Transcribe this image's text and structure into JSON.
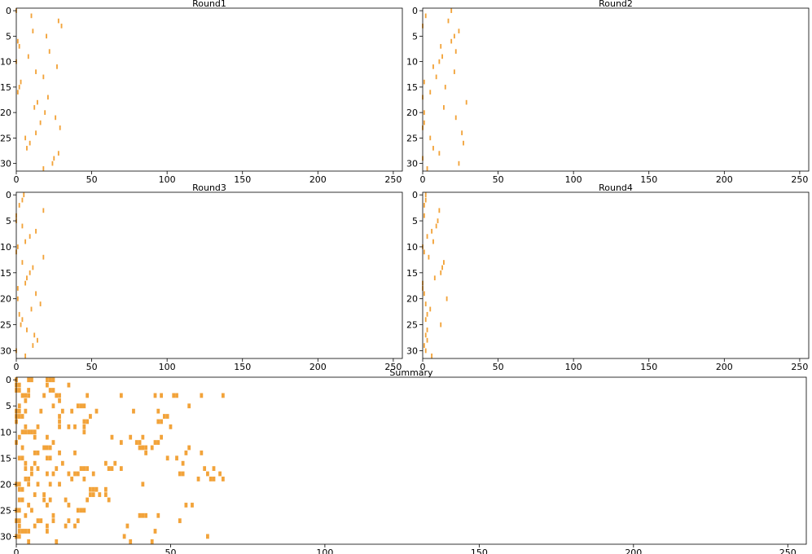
{
  "chart_data": [
    {
      "type": "heatmap",
      "title": "Round1",
      "xlim": [
        0,
        256
      ],
      "ylim": [
        31.5,
        -0.5
      ],
      "xticks": [
        0,
        50,
        100,
        150,
        200,
        250
      ],
      "yticks": [
        0,
        5,
        10,
        15,
        20,
        25,
        30
      ],
      "color": "#f2a33a",
      "marks": [
        [
          0,
          0
        ],
        [
          1,
          10
        ],
        [
          2,
          28
        ],
        [
          3,
          30
        ],
        [
          4,
          11
        ],
        [
          5,
          20
        ],
        [
          6,
          1
        ],
        [
          7,
          2
        ],
        [
          8,
          22
        ],
        [
          9,
          8
        ],
        [
          10,
          0
        ],
        [
          11,
          27
        ],
        [
          12,
          13
        ],
        [
          13,
          18
        ],
        [
          14,
          3
        ],
        [
          15,
          2
        ],
        [
          16,
          1
        ],
        [
          17,
          21
        ],
        [
          18,
          14
        ],
        [
          19,
          12
        ],
        [
          20,
          19
        ],
        [
          21,
          26
        ],
        [
          22,
          16
        ],
        [
          23,
          29
        ],
        [
          24,
          13
        ],
        [
          25,
          6
        ],
        [
          26,
          9
        ],
        [
          27,
          7
        ],
        [
          28,
          28
        ],
        [
          29,
          25
        ],
        [
          30,
          24
        ],
        [
          31,
          18
        ]
      ]
    },
    {
      "type": "heatmap",
      "title": "Round2",
      "xlim": [
        0,
        256
      ],
      "ylim": [
        31.5,
        -0.5
      ],
      "xticks": [
        0,
        50,
        100,
        150,
        200,
        250
      ],
      "yticks": [
        0,
        5,
        10,
        15,
        20,
        25,
        30
      ],
      "color": "#f2a33a",
      "marks": [
        [
          0,
          19
        ],
        [
          1,
          2
        ],
        [
          2,
          17
        ],
        [
          3,
          0
        ],
        [
          4,
          24
        ],
        [
          5,
          21
        ],
        [
          6,
          19
        ],
        [
          7,
          12
        ],
        [
          8,
          22
        ],
        [
          9,
          13
        ],
        [
          10,
          11
        ],
        [
          11,
          7
        ],
        [
          12,
          21
        ],
        [
          13,
          9
        ],
        [
          14,
          1
        ],
        [
          15,
          15
        ],
        [
          16,
          5
        ],
        [
          17,
          0
        ],
        [
          18,
          29
        ],
        [
          19,
          14
        ],
        [
          20,
          1
        ],
        [
          21,
          22
        ],
        [
          22,
          1
        ],
        [
          23,
          0
        ],
        [
          24,
          26
        ],
        [
          25,
          5
        ],
        [
          26,
          27
        ],
        [
          27,
          7
        ],
        [
          28,
          11
        ],
        [
          29,
          0
        ],
        [
          30,
          24
        ],
        [
          31,
          3
        ]
      ]
    },
    {
      "type": "heatmap",
      "title": "Round3",
      "xlim": [
        0,
        256
      ],
      "ylim": [
        31.5,
        -0.5
      ],
      "xticks": [
        0,
        50,
        100,
        150,
        200,
        250
      ],
      "yticks": [
        0,
        5,
        10,
        15,
        20,
        25,
        30
      ],
      "color": "#f2a33a",
      "marks": [
        [
          0,
          5
        ],
        [
          1,
          4
        ],
        [
          2,
          2
        ],
        [
          3,
          18
        ],
        [
          4,
          0
        ],
        [
          5,
          0
        ],
        [
          6,
          4
        ],
        [
          7,
          13
        ],
        [
          8,
          9
        ],
        [
          9,
          6
        ],
        [
          10,
          1
        ],
        [
          11,
          0
        ],
        [
          12,
          18
        ],
        [
          13,
          4
        ],
        [
          14,
          11
        ],
        [
          15,
          9
        ],
        [
          16,
          7
        ],
        [
          17,
          6
        ],
        [
          18,
          1
        ],
        [
          19,
          13
        ],
        [
          20,
          1
        ],
        [
          21,
          16
        ],
        [
          22,
          10
        ],
        [
          23,
          2
        ],
        [
          24,
          4
        ],
        [
          25,
          3
        ],
        [
          26,
          7
        ],
        [
          27,
          12
        ],
        [
          28,
          14
        ],
        [
          29,
          11
        ],
        [
          30,
          0
        ],
        [
          31,
          6
        ]
      ]
    },
    {
      "type": "heatmap",
      "title": "Round4",
      "xlim": [
        0,
        256
      ],
      "ylim": [
        31.5,
        -0.5
      ],
      "xticks": [
        0,
        50,
        100,
        150,
        200,
        250
      ],
      "yticks": [
        0,
        5,
        10,
        15,
        20,
        25,
        30
      ],
      "color": "#f2a33a",
      "marks": [
        [
          0,
          2
        ],
        [
          1,
          2
        ],
        [
          2,
          1
        ],
        [
          3,
          11
        ],
        [
          4,
          1
        ],
        [
          5,
          10
        ],
        [
          6,
          9
        ],
        [
          7,
          6
        ],
        [
          8,
          3
        ],
        [
          9,
          7
        ],
        [
          10,
          0
        ],
        [
          11,
          1
        ],
        [
          12,
          4
        ],
        [
          13,
          14
        ],
        [
          14,
          13
        ],
        [
          15,
          12
        ],
        [
          16,
          8
        ],
        [
          17,
          0
        ],
        [
          18,
          0
        ],
        [
          19,
          1
        ],
        [
          20,
          16
        ],
        [
          21,
          2
        ],
        [
          22,
          5
        ],
        [
          23,
          3
        ],
        [
          24,
          2
        ],
        [
          25,
          12
        ],
        [
          26,
          3
        ],
        [
          27,
          2
        ],
        [
          28,
          3
        ],
        [
          29,
          1
        ],
        [
          30,
          2
        ],
        [
          31,
          6
        ]
      ]
    },
    {
      "type": "heatmap",
      "title": "Summary",
      "xlim": [
        0,
        256
      ],
      "ylim": [
        31.5,
        -0.5
      ],
      "xticks": [
        0,
        50,
        100,
        150,
        200,
        250
      ],
      "yticks": [
        0,
        5,
        10,
        15,
        20,
        25,
        30
      ],
      "color": "#f2a33a",
      "marks": [
        [
          0,
          0
        ],
        [
          0,
          4
        ],
        [
          0,
          5
        ],
        [
          0,
          10
        ],
        [
          0,
          11
        ],
        [
          0,
          12
        ],
        [
          1,
          0
        ],
        [
          1,
          1
        ],
        [
          1,
          10
        ],
        [
          1,
          17
        ],
        [
          2,
          0
        ],
        [
          2,
          1
        ],
        [
          2,
          4
        ],
        [
          2,
          11
        ],
        [
          2,
          12
        ],
        [
          3,
          2
        ],
        [
          3,
          3
        ],
        [
          3,
          4
        ],
        [
          3,
          9
        ],
        [
          3,
          13
        ],
        [
          3,
          14
        ],
        [
          3,
          23
        ],
        [
          3,
          34
        ],
        [
          3,
          45
        ],
        [
          3,
          47
        ],
        [
          3,
          51
        ],
        [
          3,
          52
        ],
        [
          3,
          60
        ],
        [
          3,
          67
        ],
        [
          4,
          3
        ],
        [
          4,
          14
        ],
        [
          5,
          1
        ],
        [
          5,
          12
        ],
        [
          5,
          20
        ],
        [
          5,
          21
        ],
        [
          5,
          22
        ],
        [
          5,
          56
        ],
        [
          6,
          0
        ],
        [
          6,
          1
        ],
        [
          6,
          3
        ],
        [
          6,
          8
        ],
        [
          6,
          15
        ],
        [
          6,
          18
        ],
        [
          6,
          26
        ],
        [
          6,
          38
        ],
        [
          6,
          46
        ],
        [
          7,
          0
        ],
        [
          7,
          1
        ],
        [
          7,
          2
        ],
        [
          7,
          14
        ],
        [
          7,
          24
        ],
        [
          7,
          48
        ],
        [
          7,
          49
        ],
        [
          8,
          0
        ],
        [
          8,
          14
        ],
        [
          8,
          22
        ],
        [
          8,
          23
        ],
        [
          8,
          46
        ],
        [
          8,
          47
        ],
        [
          9,
          3
        ],
        [
          9,
          7
        ],
        [
          9,
          14
        ],
        [
          9,
          17
        ],
        [
          9,
          19
        ],
        [
          9,
          22
        ],
        [
          9,
          50
        ],
        [
          10,
          2
        ],
        [
          10,
          3
        ],
        [
          10,
          4
        ],
        [
          10,
          5
        ],
        [
          10,
          6
        ],
        [
          10,
          22
        ],
        [
          11,
          1
        ],
        [
          11,
          6
        ],
        [
          11,
          10
        ],
        [
          11,
          31
        ],
        [
          11,
          37
        ],
        [
          11,
          41
        ],
        [
          11,
          47
        ],
        [
          12,
          0
        ],
        [
          12,
          12
        ],
        [
          12,
          34
        ],
        [
          12,
          39
        ],
        [
          12,
          40
        ],
        [
          12,
          45
        ],
        [
          12,
          46
        ],
        [
          13,
          2
        ],
        [
          13,
          9
        ],
        [
          13,
          10
        ],
        [
          13,
          11
        ],
        [
          13,
          40
        ],
        [
          13,
          41
        ],
        [
          13,
          42
        ],
        [
          13,
          44
        ],
        [
          13,
          56
        ],
        [
          14,
          6
        ],
        [
          14,
          7
        ],
        [
          14,
          14
        ],
        [
          14,
          19
        ],
        [
          14,
          42
        ],
        [
          14,
          55
        ],
        [
          14,
          60
        ],
        [
          15,
          1
        ],
        [
          15,
          2
        ],
        [
          15,
          10
        ],
        [
          15,
          11
        ],
        [
          15,
          49
        ],
        [
          15,
          52
        ],
        [
          16,
          3
        ],
        [
          16,
          6
        ],
        [
          16,
          15
        ],
        [
          16,
          29
        ],
        [
          16,
          32
        ],
        [
          16,
          54
        ],
        [
          17,
          3
        ],
        [
          17,
          5
        ],
        [
          17,
          7
        ],
        [
          17,
          13
        ],
        [
          17,
          21
        ],
        [
          17,
          22
        ],
        [
          17,
          23
        ],
        [
          17,
          30
        ],
        [
          17,
          31
        ],
        [
          17,
          34
        ],
        [
          17,
          61
        ],
        [
          17,
          64
        ],
        [
          18,
          5
        ],
        [
          18,
          10
        ],
        [
          18,
          12
        ],
        [
          18,
          17
        ],
        [
          18,
          19
        ],
        [
          18,
          20
        ],
        [
          18,
          25
        ],
        [
          18,
          53
        ],
        [
          18,
          54
        ],
        [
          18,
          62
        ],
        [
          18,
          66
        ],
        [
          19,
          3
        ],
        [
          19,
          4
        ],
        [
          19,
          18
        ],
        [
          19,
          22
        ],
        [
          19,
          59
        ],
        [
          19,
          63
        ],
        [
          19,
          64
        ],
        [
          19,
          67
        ],
        [
          20,
          0
        ],
        [
          20,
          1
        ],
        [
          20,
          4
        ],
        [
          20,
          7
        ],
        [
          20,
          11
        ],
        [
          20,
          14
        ],
        [
          20,
          41
        ],
        [
          21,
          1
        ],
        [
          21,
          2
        ],
        [
          21,
          24
        ],
        [
          21,
          25
        ],
        [
          21,
          26
        ],
        [
          21,
          29
        ],
        [
          22,
          6
        ],
        [
          22,
          9
        ],
        [
          22,
          24
        ],
        [
          22,
          25
        ],
        [
          22,
          27
        ],
        [
          22,
          29
        ],
        [
          23,
          1
        ],
        [
          23,
          2
        ],
        [
          23,
          9
        ],
        [
          23,
          11
        ],
        [
          23,
          16
        ],
        [
          23,
          23
        ],
        [
          23,
          30
        ],
        [
          24,
          4
        ],
        [
          24,
          10
        ],
        [
          24,
          17
        ],
        [
          24,
          55
        ],
        [
          24,
          57
        ],
        [
          25,
          0
        ],
        [
          25,
          1
        ],
        [
          25,
          5
        ],
        [
          25,
          20
        ],
        [
          25,
          21
        ],
        [
          25,
          22
        ],
        [
          26,
          3
        ],
        [
          26,
          12
        ],
        [
          26,
          40
        ],
        [
          26,
          41
        ],
        [
          26,
          42
        ],
        [
          26,
          46
        ],
        [
          27,
          0
        ],
        [
          27,
          1
        ],
        [
          27,
          7
        ],
        [
          27,
          8
        ],
        [
          27,
          12
        ],
        [
          27,
          17
        ],
        [
          27,
          20
        ],
        [
          27,
          53
        ],
        [
          28,
          1
        ],
        [
          28,
          6
        ],
        [
          28,
          10
        ],
        [
          28,
          16
        ],
        [
          28,
          19
        ],
        [
          28,
          36
        ],
        [
          29,
          1
        ],
        [
          29,
          2
        ],
        [
          29,
          3
        ],
        [
          29,
          4
        ],
        [
          29,
          10
        ],
        [
          29,
          45
        ],
        [
          30,
          0
        ],
        [
          30,
          1
        ],
        [
          30,
          35
        ],
        [
          30,
          62
        ],
        [
          31,
          4
        ],
        [
          31,
          13
        ],
        [
          31,
          37
        ],
        [
          31,
          44
        ]
      ]
    }
  ]
}
